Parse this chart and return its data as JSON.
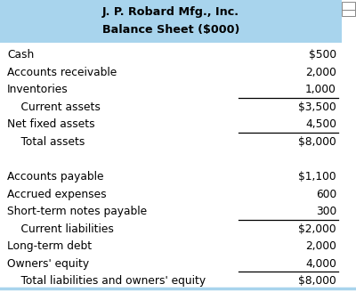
{
  "title_line1": "J. P. Robard Mfg., Inc.",
  "title_line2": "Balance Sheet ($000)",
  "header_bg": "#a8d4ed",
  "header_text_color": "#000000",
  "body_bg": "#ffffff",
  "bottom_line_color": "#a8d4ed",
  "icon_color": "#888888",
  "rows": [
    {
      "label": "Cash",
      "value": "$500",
      "indent": 0,
      "line_below": false,
      "blank_above": false
    },
    {
      "label": "Accounts receivable",
      "value": "2,000",
      "indent": 0,
      "line_below": false,
      "blank_above": false
    },
    {
      "label": "Inventories",
      "value": "1,000",
      "indent": 0,
      "line_below": true,
      "blank_above": false
    },
    {
      "label": "    Current assets",
      "value": "$3,500",
      "indent": 1,
      "line_below": false,
      "blank_above": false
    },
    {
      "label": "Net fixed assets",
      "value": "4,500",
      "indent": 0,
      "line_below": true,
      "blank_above": false
    },
    {
      "label": "    Total assets",
      "value": "$8,000",
      "indent": 1,
      "line_below": false,
      "blank_above": false
    },
    {
      "label": "",
      "value": "",
      "indent": 0,
      "line_below": false,
      "blank_above": false
    },
    {
      "label": "Accounts payable",
      "value": "$1,100",
      "indent": 0,
      "line_below": false,
      "blank_above": false
    },
    {
      "label": "Accrued expenses",
      "value": "600",
      "indent": 0,
      "line_below": false,
      "blank_above": false
    },
    {
      "label": "Short-term notes payable",
      "value": "300",
      "indent": 0,
      "line_below": true,
      "blank_above": false
    },
    {
      "label": "    Current liabilities",
      "value": "$2,000",
      "indent": 1,
      "line_below": false,
      "blank_above": false
    },
    {
      "label": "Long-term debt",
      "value": "2,000",
      "indent": 0,
      "line_below": false,
      "blank_above": false
    },
    {
      "label": "Owners' equity",
      "value": "4,000",
      "indent": 0,
      "line_below": true,
      "blank_above": false
    },
    {
      "label": "    Total liabilities and owners' equity",
      "value": "$8,000",
      "indent": 1,
      "line_below": false,
      "blank_above": false
    }
  ],
  "figsize": [
    4.0,
    3.28
  ],
  "dpi": 100,
  "font_size": 8.8,
  "title_font_size": 9.2
}
